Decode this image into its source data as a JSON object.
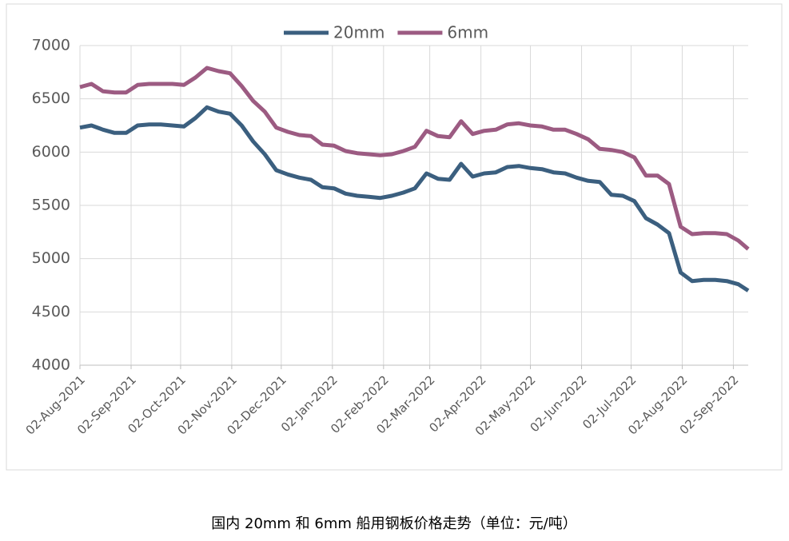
{
  "chart_data": {
    "type": "line",
    "caption": "国内 20mm 和 6mm 船用钢板价格走势（单位：元/吨）",
    "x": [
      "2021-08-02",
      "2021-08-09",
      "2021-08-16",
      "2021-08-23",
      "2021-08-30",
      "2021-09-06",
      "2021-09-13",
      "2021-09-20",
      "2021-09-27",
      "2021-10-04",
      "2021-10-11",
      "2021-10-18",
      "2021-10-25",
      "2021-11-01",
      "2021-11-08",
      "2021-11-15",
      "2021-11-22",
      "2021-11-29",
      "2021-12-06",
      "2021-12-13",
      "2021-12-20",
      "2021-12-27",
      "2022-01-03",
      "2022-01-10",
      "2022-01-17",
      "2022-01-24",
      "2022-01-31",
      "2022-02-07",
      "2022-02-14",
      "2022-02-21",
      "2022-02-28",
      "2022-03-07",
      "2022-03-14",
      "2022-03-21",
      "2022-03-28",
      "2022-04-04",
      "2022-04-11",
      "2022-04-18",
      "2022-04-25",
      "2022-05-02",
      "2022-05-09",
      "2022-05-16",
      "2022-05-23",
      "2022-05-30",
      "2022-06-06",
      "2022-06-13",
      "2022-06-20",
      "2022-06-27",
      "2022-07-04",
      "2022-07-11",
      "2022-07-18",
      "2022-07-25",
      "2022-08-01",
      "2022-08-08",
      "2022-08-15",
      "2022-08-22",
      "2022-08-29",
      "2022-09-05",
      "2022-09-11"
    ],
    "series": [
      {
        "name": "20mm",
        "color": "#3b5f7f",
        "values": [
          6230,
          6250,
          6210,
          6180,
          6180,
          6250,
          6260,
          6260,
          6250,
          6240,
          6320,
          6420,
          6380,
          6360,
          6250,
          6100,
          5980,
          5830,
          5790,
          5760,
          5740,
          5670,
          5660,
          5610,
          5590,
          5580,
          5570,
          5590,
          5620,
          5660,
          5800,
          5750,
          5740,
          5890,
          5770,
          5800,
          5810,
          5860,
          5870,
          5850,
          5840,
          5810,
          5800,
          5760,
          5730,
          5720,
          5600,
          5590,
          5540,
          5380,
          5320,
          5240,
          4870,
          4790,
          4800,
          4800,
          4790,
          4760,
          4700
        ]
      },
      {
        "name": "6mm",
        "color": "#9c5b82",
        "values": [
          6610,
          6640,
          6570,
          6560,
          6560,
          6630,
          6640,
          6640,
          6640,
          6630,
          6700,
          6790,
          6760,
          6740,
          6620,
          6480,
          6380,
          6230,
          6190,
          6160,
          6150,
          6070,
          6060,
          6010,
          5990,
          5980,
          5970,
          5980,
          6010,
          6050,
          6200,
          6150,
          6140,
          6290,
          6170,
          6200,
          6210,
          6260,
          6270,
          6250,
          6240,
          6210,
          6210,
          6170,
          6120,
          6030,
          6020,
          6000,
          5950,
          5780,
          5780,
          5700,
          5300,
          5230,
          5240,
          5240,
          5230,
          5170,
          5090
        ]
      }
    ],
    "xlim": [
      "2021-08-02",
      "2022-09-11"
    ],
    "xticks": [
      {
        "value": "2021-08-02",
        "label": "02-Aug-2021"
      },
      {
        "value": "2021-09-02",
        "label": "02-Sep-2021"
      },
      {
        "value": "2021-10-02",
        "label": "02-Oct-2021"
      },
      {
        "value": "2021-11-02",
        "label": "02-Nov-2021"
      },
      {
        "value": "2021-12-02",
        "label": "02-Dec-2021"
      },
      {
        "value": "2022-01-02",
        "label": "02-Jan-2022"
      },
      {
        "value": "2022-02-02",
        "label": "02-Feb-2022"
      },
      {
        "value": "2022-03-02",
        "label": "02-Mar-2022"
      },
      {
        "value": "2022-04-02",
        "label": "02-Apr-2022"
      },
      {
        "value": "2022-05-02",
        "label": "02-May-2022"
      },
      {
        "value": "2022-06-02",
        "label": "02-Jun-2022"
      },
      {
        "value": "2022-07-02",
        "label": "02-Jul-2022"
      },
      {
        "value": "2022-08-02",
        "label": "02-Aug-2022"
      },
      {
        "value": "2022-09-02",
        "label": "02-Sep-2022"
      }
    ],
    "ylim": [
      4000,
      7000
    ],
    "yticks": [
      4000,
      4500,
      5000,
      5500,
      6000,
      6500,
      7000
    ],
    "grid": true,
    "legend": "top"
  }
}
